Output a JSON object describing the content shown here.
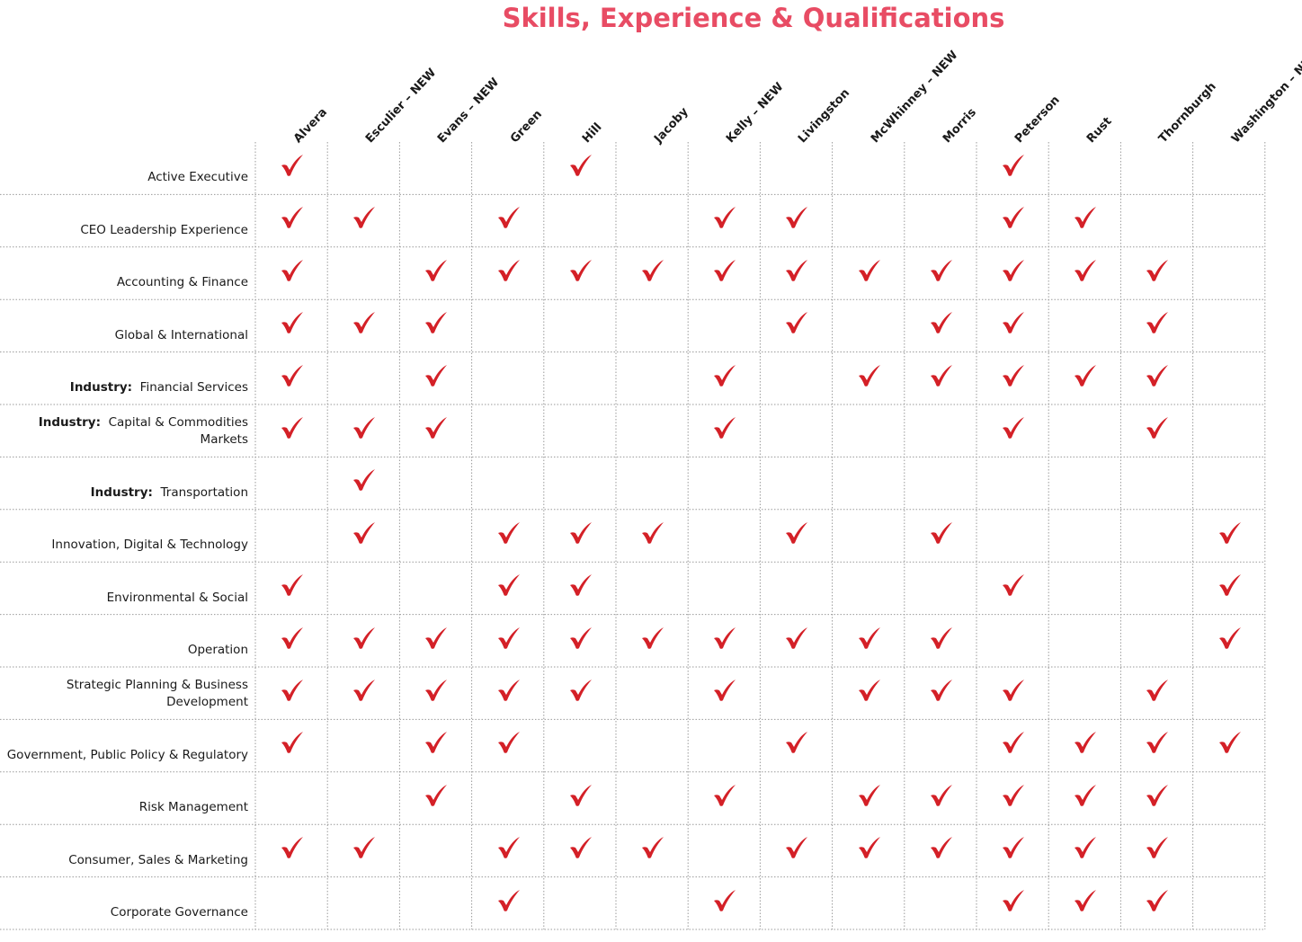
{
  "title": "Skills, Experience & Qualifications",
  "accent_color": "#e84c64",
  "check_color": "#d42027",
  "check_icon": "check-mark-icon",
  "directors": [
    "Alvera",
    "Esculier – NEW",
    "Evans – NEW",
    "Green",
    "Hill",
    "Jacoby",
    "Kelly – NEW",
    "Livingston",
    "McWhinney – NEW",
    "Morris",
    "Peterson",
    "Rust",
    "Thornburgh",
    "Washington – NEW"
  ],
  "skills": [
    {
      "prefix": "",
      "label": "Active Executive",
      "checks": [
        1,
        0,
        0,
        0,
        1,
        0,
        0,
        0,
        0,
        0,
        1,
        0,
        0,
        0
      ]
    },
    {
      "prefix": "",
      "label": "CEO Leadership Experience",
      "checks": [
        1,
        1,
        0,
        1,
        0,
        0,
        1,
        1,
        0,
        0,
        1,
        1,
        0,
        0
      ]
    },
    {
      "prefix": "",
      "label": "Accounting & Finance",
      "checks": [
        1,
        0,
        1,
        1,
        1,
        1,
        1,
        1,
        1,
        1,
        1,
        1,
        1,
        0
      ]
    },
    {
      "prefix": "",
      "label": "Global & International",
      "checks": [
        1,
        1,
        1,
        0,
        0,
        0,
        0,
        1,
        0,
        1,
        1,
        0,
        1,
        0
      ]
    },
    {
      "prefix": "Industry:",
      "label": "Financial Services",
      "checks": [
        1,
        0,
        1,
        0,
        0,
        0,
        1,
        0,
        1,
        1,
        1,
        1,
        1,
        0
      ]
    },
    {
      "prefix": "Industry:",
      "label": "Capital & Commodities Markets",
      "checks": [
        1,
        1,
        1,
        0,
        0,
        0,
        1,
        0,
        0,
        0,
        1,
        0,
        1,
        0
      ]
    },
    {
      "prefix": "Industry:",
      "label": "Transportation",
      "checks": [
        0,
        1,
        0,
        0,
        0,
        0,
        0,
        0,
        0,
        0,
        0,
        0,
        0,
        0
      ]
    },
    {
      "prefix": "",
      "label": "Innovation, Digital & Technology",
      "checks": [
        0,
        1,
        0,
        1,
        1,
        1,
        0,
        1,
        0,
        1,
        0,
        0,
        0,
        1
      ]
    },
    {
      "prefix": "",
      "label": "Environmental & Social",
      "checks": [
        1,
        0,
        0,
        1,
        1,
        0,
        0,
        0,
        0,
        0,
        1,
        0,
        0,
        1
      ]
    },
    {
      "prefix": "",
      "label": "Operation",
      "checks": [
        1,
        1,
        1,
        1,
        1,
        1,
        1,
        1,
        1,
        1,
        0,
        0,
        0,
        1
      ]
    },
    {
      "prefix": "",
      "label": "Strategic Planning & Business Development",
      "checks": [
        1,
        1,
        1,
        1,
        1,
        0,
        1,
        0,
        1,
        1,
        1,
        0,
        1,
        0
      ]
    },
    {
      "prefix": "",
      "label": "Government, Public Policy & Regulatory",
      "checks": [
        1,
        0,
        1,
        1,
        0,
        0,
        0,
        1,
        0,
        0,
        1,
        1,
        1,
        1
      ]
    },
    {
      "prefix": "",
      "label": "Risk Management",
      "checks": [
        0,
        0,
        1,
        0,
        1,
        0,
        1,
        0,
        1,
        1,
        1,
        1,
        1,
        0
      ]
    },
    {
      "prefix": "",
      "label": "Consumer, Sales & Marketing",
      "checks": [
        1,
        1,
        0,
        1,
        1,
        1,
        0,
        1,
        1,
        1,
        1,
        1,
        1,
        0
      ]
    },
    {
      "prefix": "",
      "label": "Corporate Governance",
      "checks": [
        0,
        0,
        0,
        1,
        0,
        0,
        1,
        0,
        0,
        0,
        1,
        1,
        1,
        0
      ]
    }
  ]
}
